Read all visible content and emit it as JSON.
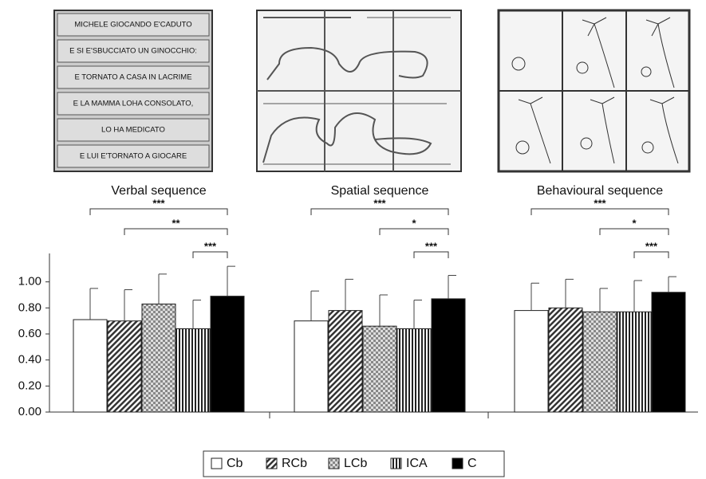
{
  "chart_data": {
    "type": "bar",
    "verbal_panel": [
      "MICHELE GIOCANDO E'CADUTO",
      "E SI E'SBUCCIATO UN GINOCCHIO:",
      "E TORNATO A CASA IN LACRIME",
      "E LA MAMMA LOHA CONSOLATO,",
      "LO HA MEDICATO",
      "E LUI E'TORNATO A GIOCARE"
    ],
    "categories": [
      "Verbal sequence",
      "Spatial sequence",
      "Behavioural sequence"
    ],
    "series": [
      {
        "name": "Cb",
        "color": "#ffffff",
        "values": [
          0.71,
          0.7,
          0.78
        ],
        "errors": [
          0.24,
          0.23,
          0.21
        ]
      },
      {
        "name": "RCb",
        "color": "#555555",
        "values": [
          0.7,
          0.78,
          0.8
        ],
        "errors": [
          0.24,
          0.24,
          0.22
        ]
      },
      {
        "name": "LCb",
        "color": "#999999",
        "values": [
          0.83,
          0.66,
          0.77
        ],
        "errors": [
          0.23,
          0.24,
          0.18
        ]
      },
      {
        "name": "ICA",
        "color": "#333333",
        "values": [
          0.64,
          0.64,
          0.77
        ],
        "errors": [
          0.22,
          0.22,
          0.24
        ]
      },
      {
        "name": "C",
        "color": "#000000",
        "values": [
          0.89,
          0.87,
          0.92
        ],
        "errors": [
          0.23,
          0.18,
          0.12
        ]
      }
    ],
    "significance": [
      [
        "***",
        "**",
        "***"
      ],
      [
        "***",
        "*",
        "***"
      ],
      [
        "***",
        "*",
        "***"
      ]
    ],
    "ylim": [
      0,
      1.2
    ],
    "yticks": [
      {
        "value": 0,
        "label": "0.00"
      },
      {
        "value": 0.2,
        "label": "0.20"
      },
      {
        "value": 0.4,
        "label": "0.40"
      },
      {
        "value": 0.6,
        "label": "0.60"
      },
      {
        "value": 0.8,
        "label": "0.80"
      },
      {
        "value": 1,
        "label": "1.00"
      }
    ]
  }
}
